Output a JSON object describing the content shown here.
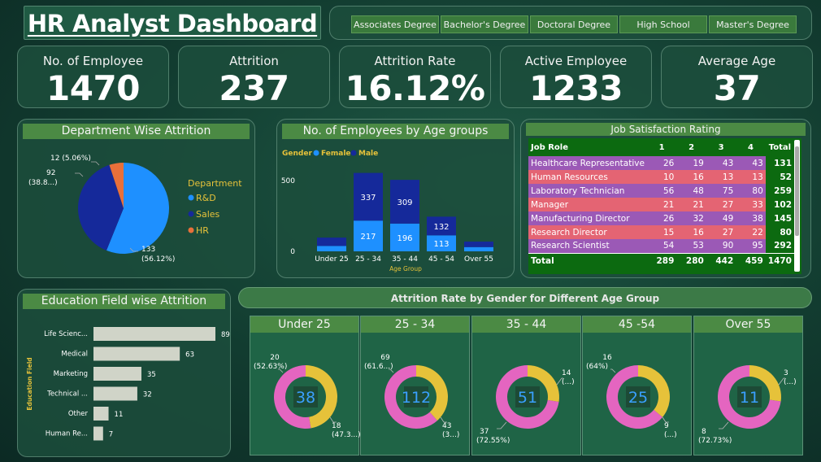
{
  "header": {
    "title": "HR Analyst Dashboard"
  },
  "filters": [
    "Associates Degree",
    "Bachelor's Degree",
    "Doctoral Degree",
    "High School",
    "Master's Degree"
  ],
  "kpis": [
    {
      "label": "No. of Employee",
      "value": "1470"
    },
    {
      "label": "Attrition",
      "value": "237"
    },
    {
      "label": "Attrition Rate",
      "value": "16.12%"
    },
    {
      "label": "Active Employee",
      "value": "1233"
    },
    {
      "label": "Average Age",
      "value": "37"
    }
  ],
  "colors": {
    "rd": "#1e90ff",
    "sales": "#15299a",
    "hr": "#e8703a",
    "female": "#1e90ff",
    "male": "#15299a",
    "pink": "#e465c0",
    "yellow": "#e6c23a",
    "bar": "#d0d4c8",
    "purple": "#9b59b6",
    "red": "#e46473"
  },
  "department": {
    "title": "Department Wise Attrition",
    "legend_title": "Department",
    "chart_data": {
      "type": "pie",
      "slices": [
        {
          "name": "R&D",
          "value": 133,
          "label_value": "133",
          "label_pct": "(56.12%)"
        },
        {
          "name": "Sales",
          "value": 92,
          "label_value": "92",
          "label_pct": "(38.8...)"
        },
        {
          "name": "HR",
          "value": 12,
          "label_value": "12 (5.06%)",
          "label_pct": ""
        }
      ]
    }
  },
  "age_groups": {
    "title": "No. of Employees by Age groups",
    "legend_title": "Gender",
    "chart_data": {
      "type": "bar",
      "stacked": true,
      "categories": [
        "Under 25",
        "25 - 34",
        "35 - 44",
        "45 - 54",
        "Over 55"
      ],
      "series": [
        {
          "name": "Female",
          "values": [
            38,
            217,
            196,
            113,
            30
          ]
        },
        {
          "name": "Male",
          "values": [
            59,
            337,
            309,
            132,
            39
          ]
        }
      ],
      "xlabel": "Age Group",
      "ylim": [
        0,
        600
      ],
      "yticks": [
        0,
        500
      ],
      "shown_labels": {
        "Female": [
          null,
          "217",
          "196",
          "113",
          null
        ],
        "Male": [
          null,
          "337",
          "309",
          "132",
          null
        ]
      }
    }
  },
  "job_satisfaction": {
    "title": "Job Satisfaction Rating",
    "columns": [
      "Job Role",
      "1",
      "2",
      "3",
      "4",
      "Total"
    ],
    "rows": [
      {
        "role": "Healthcare Representative",
        "v": [
          "26",
          "19",
          "43",
          "43"
        ],
        "total": "131",
        "color": "purple"
      },
      {
        "role": "Human Resources",
        "v": [
          "10",
          "16",
          "13",
          "13"
        ],
        "total": "52",
        "color": "red"
      },
      {
        "role": "Laboratory Technician",
        "v": [
          "56",
          "48",
          "75",
          "80"
        ],
        "total": "259",
        "color": "purple"
      },
      {
        "role": "Manager",
        "v": [
          "21",
          "21",
          "27",
          "33"
        ],
        "total": "102",
        "color": "red"
      },
      {
        "role": "Manufacturing Director",
        "v": [
          "26",
          "32",
          "49",
          "38"
        ],
        "total": "145",
        "color": "purple"
      },
      {
        "role": "Research Director",
        "v": [
          "15",
          "16",
          "27",
          "22"
        ],
        "total": "80",
        "color": "red"
      },
      {
        "role": "Research Scientist",
        "v": [
          "54",
          "53",
          "90",
          "95"
        ],
        "total": "292",
        "color": "purple"
      }
    ],
    "total_row": {
      "label": "Total",
      "v": [
        "289",
        "280",
        "442",
        "459"
      ],
      "total": "1470"
    }
  },
  "education": {
    "title": "Education Field wise Attrition",
    "ylabel": "Education Field",
    "chart_data": {
      "type": "bar",
      "orientation": "horizontal",
      "categories": [
        "Life Scienc...",
        "Medical",
        "Marketing",
        "Technical ...",
        "Other",
        "Human Re..."
      ],
      "values": [
        89,
        63,
        35,
        32,
        11,
        7
      ],
      "xlim": [
        0,
        100
      ]
    }
  },
  "gender_age": {
    "title": "Attrition Rate by Gender for Different Age Group",
    "chart_data": [
      {
        "type": "pie",
        "group": "Under 25",
        "total": "38",
        "slices": [
          {
            "value": 20,
            "color": "pink",
            "label": [
              "20",
              "(52.63%)"
            ]
          },
          {
            "value": 18,
            "color": "yellow",
            "label": [
              "18",
              "(47.3...)"
            ]
          }
        ]
      },
      {
        "type": "pie",
        "group": "25 - 34",
        "total": "112",
        "slices": [
          {
            "value": 69,
            "color": "pink",
            "label": [
              "69",
              "(61.6...)"
            ]
          },
          {
            "value": 43,
            "color": "yellow",
            "label": [
              "43",
              "(3...)"
            ]
          }
        ]
      },
      {
        "type": "pie",
        "group": "35 - 44",
        "total": "51",
        "slices": [
          {
            "value": 37,
            "color": "pink",
            "label": [
              "37",
              "(72.55%)"
            ]
          },
          {
            "value": 14,
            "color": "yellow",
            "label": [
              "14",
              "(...)"
            ]
          }
        ]
      },
      {
        "type": "pie",
        "group": "45 -54",
        "total": "25",
        "slices": [
          {
            "value": 16,
            "color": "pink",
            "label": [
              "16",
              "(64%)"
            ]
          },
          {
            "value": 9,
            "color": "yellow",
            "label": [
              "9",
              "(...)"
            ]
          }
        ]
      },
      {
        "type": "pie",
        "group": "Over 55",
        "total": "11",
        "slices": [
          {
            "value": 8,
            "color": "pink",
            "label": [
              "8",
              "(72.73%)"
            ]
          },
          {
            "value": 3,
            "color": "yellow",
            "label": [
              "3",
              "(...)"
            ]
          }
        ]
      }
    ]
  }
}
